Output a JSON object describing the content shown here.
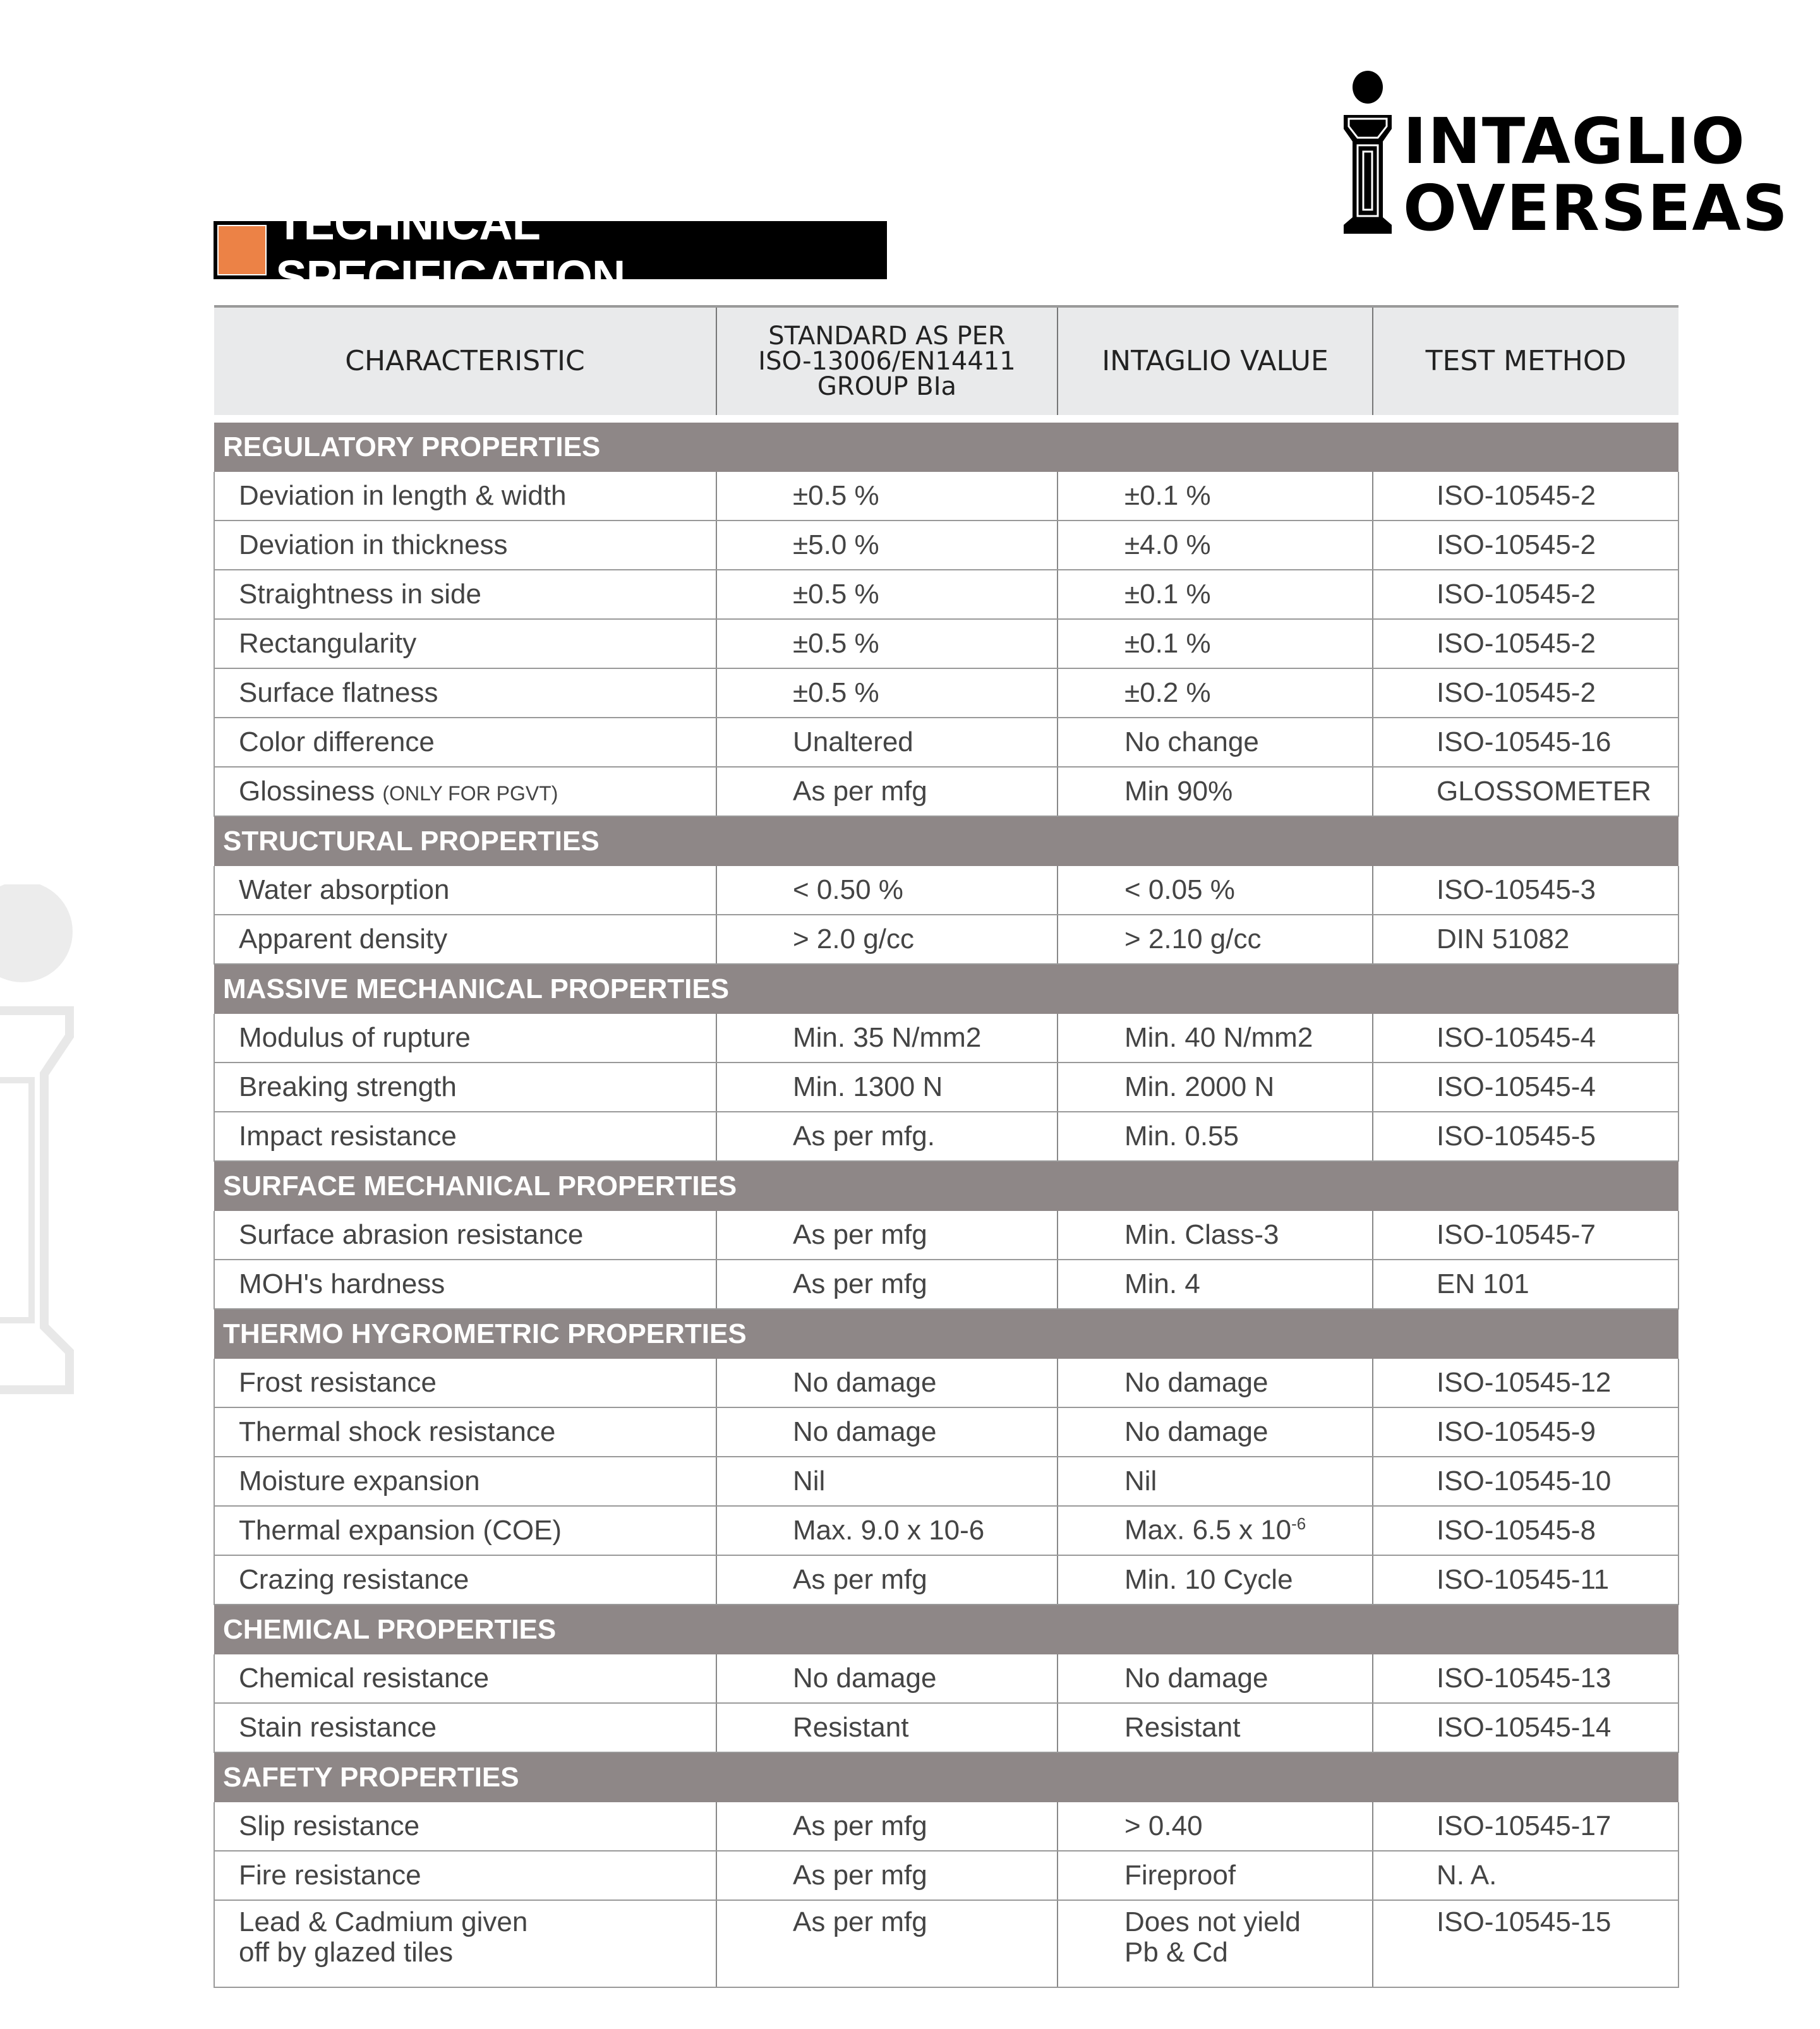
{
  "logo": {
    "line1": "INTAGLIO",
    "line2": "OVERSEAS"
  },
  "title": "TECHNICAL SPECIFICATION",
  "colors": {
    "accent": "#ec8246",
    "section_bg": "#8e8787",
    "header_bg": "#e9eaeb"
  },
  "table": {
    "headers": [
      "CHARACTERISTIC",
      "STANDARD AS PER ISO-13006/EN14411 GROUP BIa",
      "INTAGLIO VALUE",
      "TEST METHOD"
    ],
    "sections": [
      {
        "title": "REGULATORY PROPERTIES",
        "rows": [
          [
            "Deviation in length & width",
            "±0.5 %",
            "±0.1 %",
            "ISO-10545-2"
          ],
          [
            "Deviation in thickness",
            "±5.0 %",
            "±4.0 %",
            "ISO-10545-2"
          ],
          [
            "Straightness in side",
            "±0.5 %",
            "±0.1 %",
            "ISO-10545-2"
          ],
          [
            "Rectangularity",
            "±0.5 %",
            "±0.1 %",
            "ISO-10545-2"
          ],
          [
            "Surface flatness",
            "±0.5 %",
            "±0.2 %",
            "ISO-10545-2"
          ],
          [
            "Color difference",
            "Unaltered",
            "No change",
            "ISO-10545-16"
          ],
          [
            "Glossiness",
            "As per mfg",
            "Min 90%",
            "GLOSSOMETER"
          ]
        ]
      },
      {
        "title": "STRUCTURAL PROPERTIES",
        "rows": [
          [
            "Water absorption",
            "< 0.50 %",
            "< 0.05 %",
            "ISO-10545-3"
          ],
          [
            "Apparent density",
            "> 2.0 g/cc",
            "> 2.10 g/cc",
            "DIN 51082"
          ]
        ]
      },
      {
        "title": "MASSIVE MECHANICAL  PROPERTIES",
        "rows": [
          [
            "Modulus of rupture",
            "Min. 35 N/mm2",
            "Min. 40 N/mm2",
            "ISO-10545-4"
          ],
          [
            "Breaking strength",
            "Min. 1300 N",
            "Min. 2000 N",
            "ISO-10545-4"
          ],
          [
            "Impact resistance",
            "As per mfg.",
            "Min. 0.55",
            "ISO-10545-5"
          ]
        ]
      },
      {
        "title": "SURFACE  MECHANICAL  PROPERTIES",
        "rows": [
          [
            "Surface abrasion resistance",
            "As per mfg",
            "Min. Class-3",
            "ISO-10545-7"
          ],
          [
            "MOH's hardness",
            "As per mfg",
            "Min. 4",
            "EN 101"
          ]
        ]
      },
      {
        "title": "THERMO HYGROMETRIC  PROPERTIES",
        "rows": [
          [
            "Frost resistance",
            "No damage",
            "No damage",
            "ISO-10545-12"
          ],
          [
            "Thermal shock resistance",
            "No damage",
            "No damage",
            "ISO-10545-9"
          ],
          [
            "Moisture expansion",
            "Nil",
            "Nil",
            "ISO-10545-10"
          ],
          [
            "Thermal expansion (COE)",
            "Max. 9.0 x 10-6",
            "Max. 6.5 x 10",
            "ISO-10545-8"
          ],
          [
            "Crazing resistance",
            "As per mfg",
            "Min. 10 Cycle",
            "ISO-10545-11"
          ]
        ]
      },
      {
        "title": "CHEMICAL PROPERTIES",
        "rows": [
          [
            "Chemical resistance",
            "No damage",
            "No damage",
            "ISO-10545-13"
          ],
          [
            "Stain resistance",
            "Resistant",
            "Resistant",
            "ISO-10545-14"
          ]
        ]
      },
      {
        "title": "SAFETY PROPERTIES",
        "rows": [
          [
            "Slip resistance",
            "As per mfg",
            "> 0.40",
            "ISO-10545-17"
          ],
          [
            "Fire resistance",
            "As per mfg",
            "Fireproof",
            "N. A."
          ],
          [
            "Lead & Cadmium given off by glazed tiles",
            "As per mfg",
            "Does not yield Pb & Cd",
            "ISO-10545-15"
          ]
        ]
      }
    ],
    "glossiness_note": "(ONLY FOR PGVT)",
    "coe_superscript": "-6"
  }
}
